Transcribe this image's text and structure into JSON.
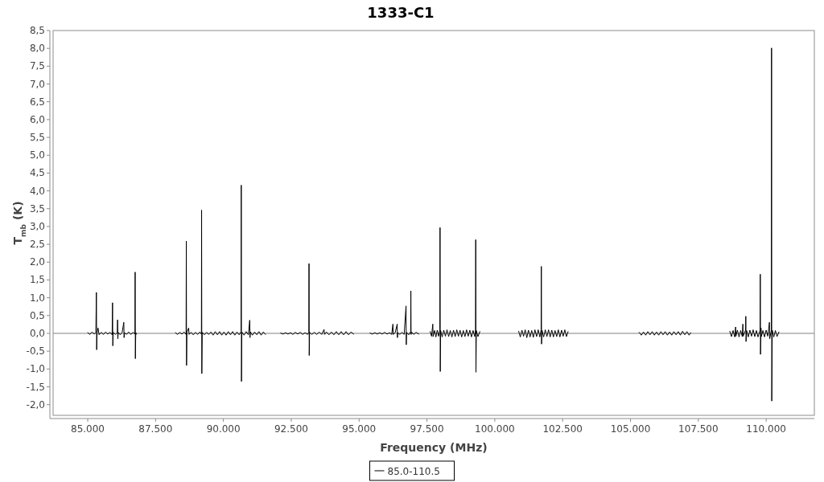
{
  "chart_data": {
    "type": "line",
    "title": "1333-C1",
    "xlabel": "Frequency (MHz)",
    "ylabel": "T$_{mb}$ (K)",
    "xlim": [
      83725,
      111775
    ],
    "ylim": [
      -2.3,
      8.5
    ],
    "xticks": [
      {
        "value": 85000,
        "label": "85.000"
      },
      {
        "value": 87500,
        "label": "87.500"
      },
      {
        "value": 90000,
        "label": "90.000"
      },
      {
        "value": 92500,
        "label": "92.500"
      },
      {
        "value": 95000,
        "label": "95.000"
      },
      {
        "value": 97500,
        "label": "97.500"
      },
      {
        "value": 100000,
        "label": "100.000"
      },
      {
        "value": 102500,
        "label": "102.500"
      },
      {
        "value": 105000,
        "label": "105.000"
      },
      {
        "value": 107500,
        "label": "107.500"
      },
      {
        "value": 110000,
        "label": "110.000"
      }
    ],
    "yticks": [
      {
        "value": -2,
        "label": "-2,0"
      },
      {
        "value": -1.5,
        "label": "-1,5"
      },
      {
        "value": -1,
        "label": "-1,0"
      },
      {
        "value": -0.5,
        "label": "-0,5"
      },
      {
        "value": 0,
        "label": "0,0"
      },
      {
        "value": 0.5,
        "label": "0,5"
      },
      {
        "value": 1,
        "label": "1,0"
      },
      {
        "value": 1.5,
        "label": "1,5"
      },
      {
        "value": 2,
        "label": "2,0"
      },
      {
        "value": 2.5,
        "label": "2,5"
      },
      {
        "value": 3,
        "label": "3,0"
      },
      {
        "value": 3.5,
        "label": "3,5"
      },
      {
        "value": 4,
        "label": "4,0"
      },
      {
        "value": 4.5,
        "label": "4,5"
      },
      {
        "value": 5,
        "label": "5,0"
      },
      {
        "value": 5.5,
        "label": "5,5"
      },
      {
        "value": 6,
        "label": "6,0"
      },
      {
        "value": 6.5,
        "label": "6,5"
      },
      {
        "value": 7,
        "label": "7,0"
      },
      {
        "value": 7.5,
        "label": "7,5"
      },
      {
        "value": 8,
        "label": "8,0"
      },
      {
        "value": 8.5,
        "label": "8,5"
      }
    ],
    "legend": "bottom",
    "line_style": "solid",
    "ref_lines": [
      {
        "axis": "y",
        "value": 0,
        "color": "#808080"
      }
    ],
    "x": [
      85000,
      85080,
      85160,
      85240,
      85300,
      85320,
      85330,
      85345,
      85380,
      85420,
      85500,
      85580,
      85660,
      85740,
      85820,
      85900,
      85915,
      85925,
      85940,
      86020,
      86090,
      86100,
      86110,
      86125,
      86200,
      86270,
      86330,
      86340,
      86355,
      86430,
      86510,
      86590,
      86670,
      86740,
      86748,
      86756,
      86770,
      86800,
      87500,
      88230,
      88310,
      88390,
      88470,
      88550,
      88625,
      88634,
      88642,
      88655,
      88720,
      88735,
      88810,
      88890,
      88970,
      89050,
      89130,
      89190,
      89197,
      89205,
      89220,
      89300,
      89380,
      89460,
      89540,
      89620,
      89700,
      89780,
      89860,
      89940,
      90020,
      90100,
      90180,
      90260,
      90340,
      90420,
      90500,
      90580,
      90650,
      90658,
      90666,
      90680,
      90760,
      90840,
      90920,
      90970,
      90980,
      90995,
      91070,
      91150,
      91230,
      91310,
      91390,
      91470,
      91550,
      91800,
      92110,
      92200,
      92290,
      92380,
      92470,
      92560,
      92650,
      92740,
      92830,
      92920,
      93010,
      93100,
      93148,
      93155,
      93162,
      93175,
      93260,
      93350,
      93440,
      93530,
      93620,
      93710,
      93725,
      93800,
      93890,
      93980,
      94070,
      94160,
      94250,
      94340,
      94430,
      94520,
      94610,
      94700,
      94800,
      95100,
      95400,
      95490,
      95580,
      95670,
      95760,
      95850,
      95940,
      96030,
      96120,
      96200,
      96247,
      96255,
      96330,
      96404,
      96412,
      96425,
      96500,
      96580,
      96660,
      96730,
      96738,
      96750,
      96830,
      96900,
      96908,
      96916,
      96930,
      97010,
      97100,
      97200,
      97400,
      97620,
      97670,
      97716,
      97725,
      97780,
      97830,
      97880,
      97930,
      97975,
      97983,
      97991,
      98005,
      98060,
      98120,
      98180,
      98240,
      98300,
      98360,
      98420,
      98480,
      98540,
      98600,
      98660,
      98720,
      98780,
      98840,
      98900,
      98960,
      99020,
      99080,
      99140,
      99200,
      99260,
      99290,
      99298,
      99306,
      99320,
      99380,
      99450,
      100100,
      100880,
      100940,
      101000,
      101060,
      101120,
      101180,
      101240,
      101300,
      101360,
      101420,
      101480,
      101540,
      101600,
      101660,
      101707,
      101715,
      101723,
      101740,
      101800,
      101860,
      101920,
      101980,
      102040,
      102100,
      102160,
      102220,
      102280,
      102340,
      102400,
      102460,
      102520,
      102580,
      102640,
      102700,
      104000,
      105320,
      105400,
      105480,
      105560,
      105640,
      105720,
      105800,
      105880,
      105960,
      106040,
      106120,
      106200,
      106280,
      106360,
      106440,
      106520,
      106600,
      106680,
      106760,
      106840,
      106920,
      107000,
      107080,
      107160,
      107220,
      108000,
      108660,
      108720,
      108780,
      108840,
      108874,
      108885,
      108940,
      109000,
      109060,
      109120,
      109141,
      109150,
      109240,
      109250,
      109258,
      109280,
      109340,
      109400,
      109460,
      109520,
      109580,
      109640,
      109700,
      109775,
      109783,
      109791,
      109810,
      109822,
      109880,
      109940,
      110000,
      110060,
      110120,
      110130,
      110190,
      110198,
      110206,
      110225,
      110280,
      110340,
      110400,
      110470
    ],
    "series": [
      {
        "name": "85.0-110.5",
        "color": "#000000",
        "values": [
          0.02,
          -0.03,
          0.04,
          -0.02,
          0.03,
          1.15,
          -0.46,
          0.02,
          0.15,
          -0.04,
          0.03,
          -0.03,
          0.04,
          -0.02,
          0.03,
          -0.04,
          0.86,
          -0.35,
          0.03,
          -0.03,
          0.02,
          0.38,
          -0.15,
          0.03,
          -0.04,
          0.03,
          0.31,
          -0.12,
          0.02,
          -0.03,
          0.04,
          -0.03,
          0.03,
          -0.02,
          1.72,
          -0.71,
          0.02,
          -0.02,
          null,
          0.02,
          -0.03,
          0.03,
          -0.02,
          0.04,
          -0.03,
          2.59,
          -0.9,
          0.03,
          0.15,
          -0.03,
          0.03,
          -0.04,
          0.03,
          -0.03,
          0.04,
          -0.02,
          3.46,
          -1.13,
          0.03,
          -0.04,
          0.03,
          -0.03,
          0.04,
          -0.05,
          0.05,
          -0.04,
          0.05,
          -0.05,
          0.04,
          -0.05,
          0.05,
          -0.04,
          0.05,
          -0.05,
          0.04,
          -0.04,
          0.05,
          4.16,
          -1.35,
          0.04,
          -0.05,
          0.05,
          -0.04,
          0.37,
          -0.12,
          0.04,
          -0.05,
          0.04,
          -0.04,
          0.05,
          -0.05,
          0.04,
          -0.03,
          null,
          0.01,
          -0.02,
          0.02,
          -0.02,
          0.02,
          -0.03,
          0.03,
          -0.02,
          0.03,
          -0.03,
          0.02,
          -0.03,
          0.03,
          1.96,
          -0.62,
          0.03,
          -0.03,
          0.03,
          -0.03,
          0.04,
          -0.03,
          0.11,
          -0.03,
          0.04,
          -0.04,
          0.04,
          -0.04,
          0.05,
          -0.04,
          0.05,
          -0.04,
          0.05,
          -0.04,
          0.04,
          -0.02,
          null,
          0.01,
          -0.02,
          0.02,
          -0.02,
          0.02,
          -0.02,
          0.03,
          -0.02,
          0.02,
          -0.03,
          0.26,
          -0.03,
          0.02,
          0.26,
          -0.12,
          0.02,
          -0.03,
          0.03,
          -0.03,
          0.77,
          -0.32,
          0.03,
          -0.04,
          0.05,
          1.19,
          -0.03,
          0.04,
          -0.03,
          0.03,
          -0.02,
          null,
          0.05,
          -0.08,
          0.26,
          -0.09,
          0.08,
          -0.1,
          0.09,
          -0.08,
          0.1,
          2.97,
          -1.07,
          0.08,
          -0.1,
          0.09,
          -0.08,
          0.1,
          -0.09,
          0.08,
          -0.1,
          0.09,
          -0.09,
          0.1,
          -0.08,
          0.09,
          -0.1,
          0.08,
          -0.09,
          0.1,
          -0.08,
          0.09,
          -0.1,
          0.08,
          -0.09,
          0.1,
          2.63,
          -1.09,
          0.08,
          -0.09,
          0.05,
          null,
          0.06,
          -0.1,
          0.09,
          -0.08,
          0.1,
          -0.12,
          0.09,
          -0.1,
          0.08,
          -0.11,
          0.1,
          -0.09,
          0.1,
          -0.1,
          0.1,
          1.88,
          -0.3,
          0.09,
          -0.1,
          0.1,
          -0.09,
          0.1,
          -0.1,
          0.09,
          -0.1,
          0.08,
          -0.09,
          0.1,
          -0.1,
          0.09,
          -0.08,
          0.1,
          -0.09,
          0.05,
          null,
          0.03,
          -0.05,
          0.04,
          -0.05,
          0.05,
          -0.04,
          0.05,
          -0.05,
          0.04,
          -0.05,
          0.05,
          -0.04,
          0.05,
          -0.05,
          0.04,
          -0.05,
          0.05,
          -0.04,
          0.05,
          -0.05,
          0.06,
          -0.04,
          0.05,
          -0.05,
          0.02,
          null,
          0.06,
          -0.09,
          0.08,
          -0.1,
          0.18,
          -0.08,
          0.09,
          -0.1,
          0.08,
          -0.09,
          0.26,
          -0.08,
          0.09,
          0.48,
          -0.23,
          0.08,
          -0.1,
          0.09,
          -0.08,
          0.1,
          -0.09,
          0.08,
          -0.1,
          0.09,
          1.66,
          -0.59,
          0.15,
          -0.09,
          0.08,
          -0.1,
          0.09,
          -0.08,
          0.31,
          -0.15,
          0.08,
          8.01,
          -1.9,
          0.09,
          -0.1,
          0.08,
          -0.09,
          0.04
        ]
      }
    ]
  }
}
